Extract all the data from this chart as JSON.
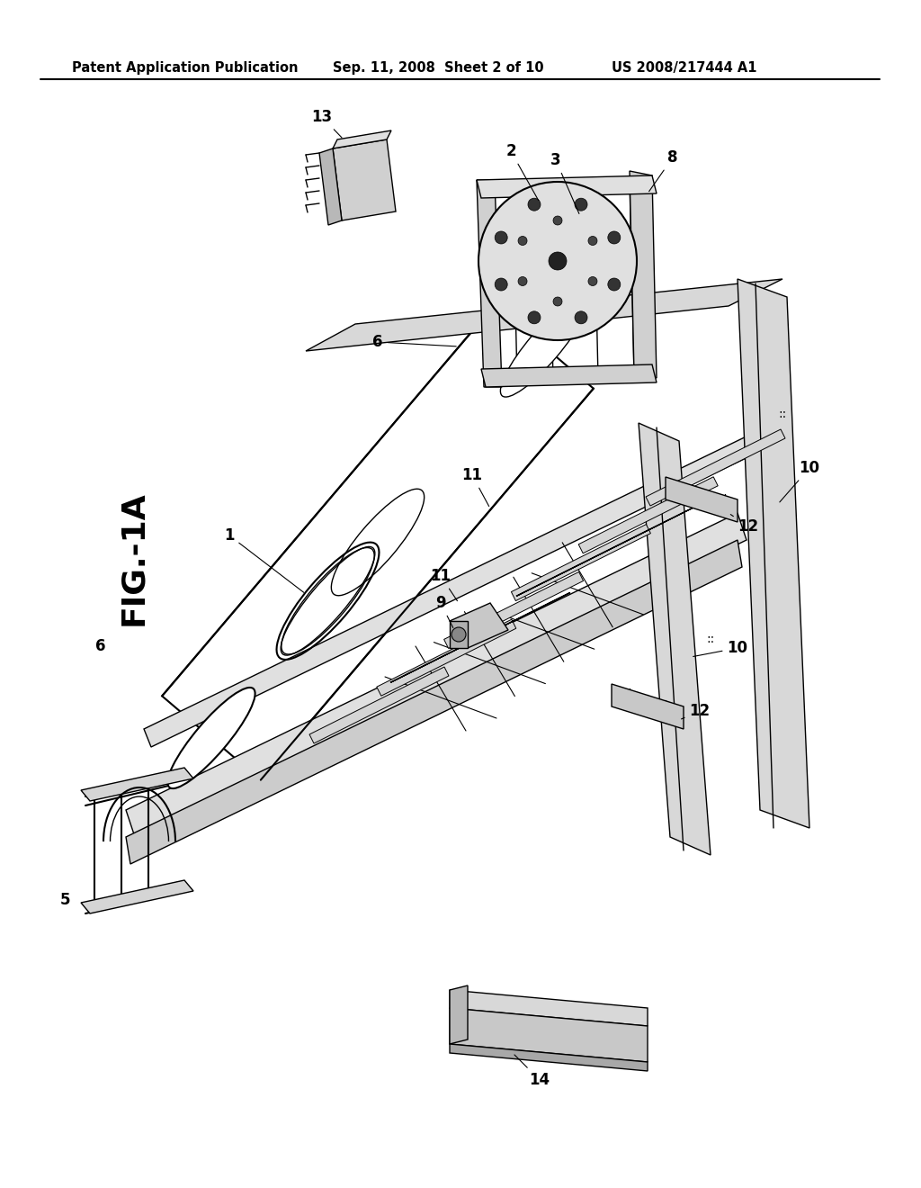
{
  "header_left": "Patent Application Publication",
  "header_mid": "Sep. 11, 2008  Sheet 2 of 10",
  "header_right": "US 2008/217444 A1",
  "fig_label": "FIG-1A",
  "background_color": "#ffffff",
  "line_color": "#000000",
  "header_fontsize": 10.5,
  "fig_label_fontsize": 26,
  "label_fontsize": 11
}
